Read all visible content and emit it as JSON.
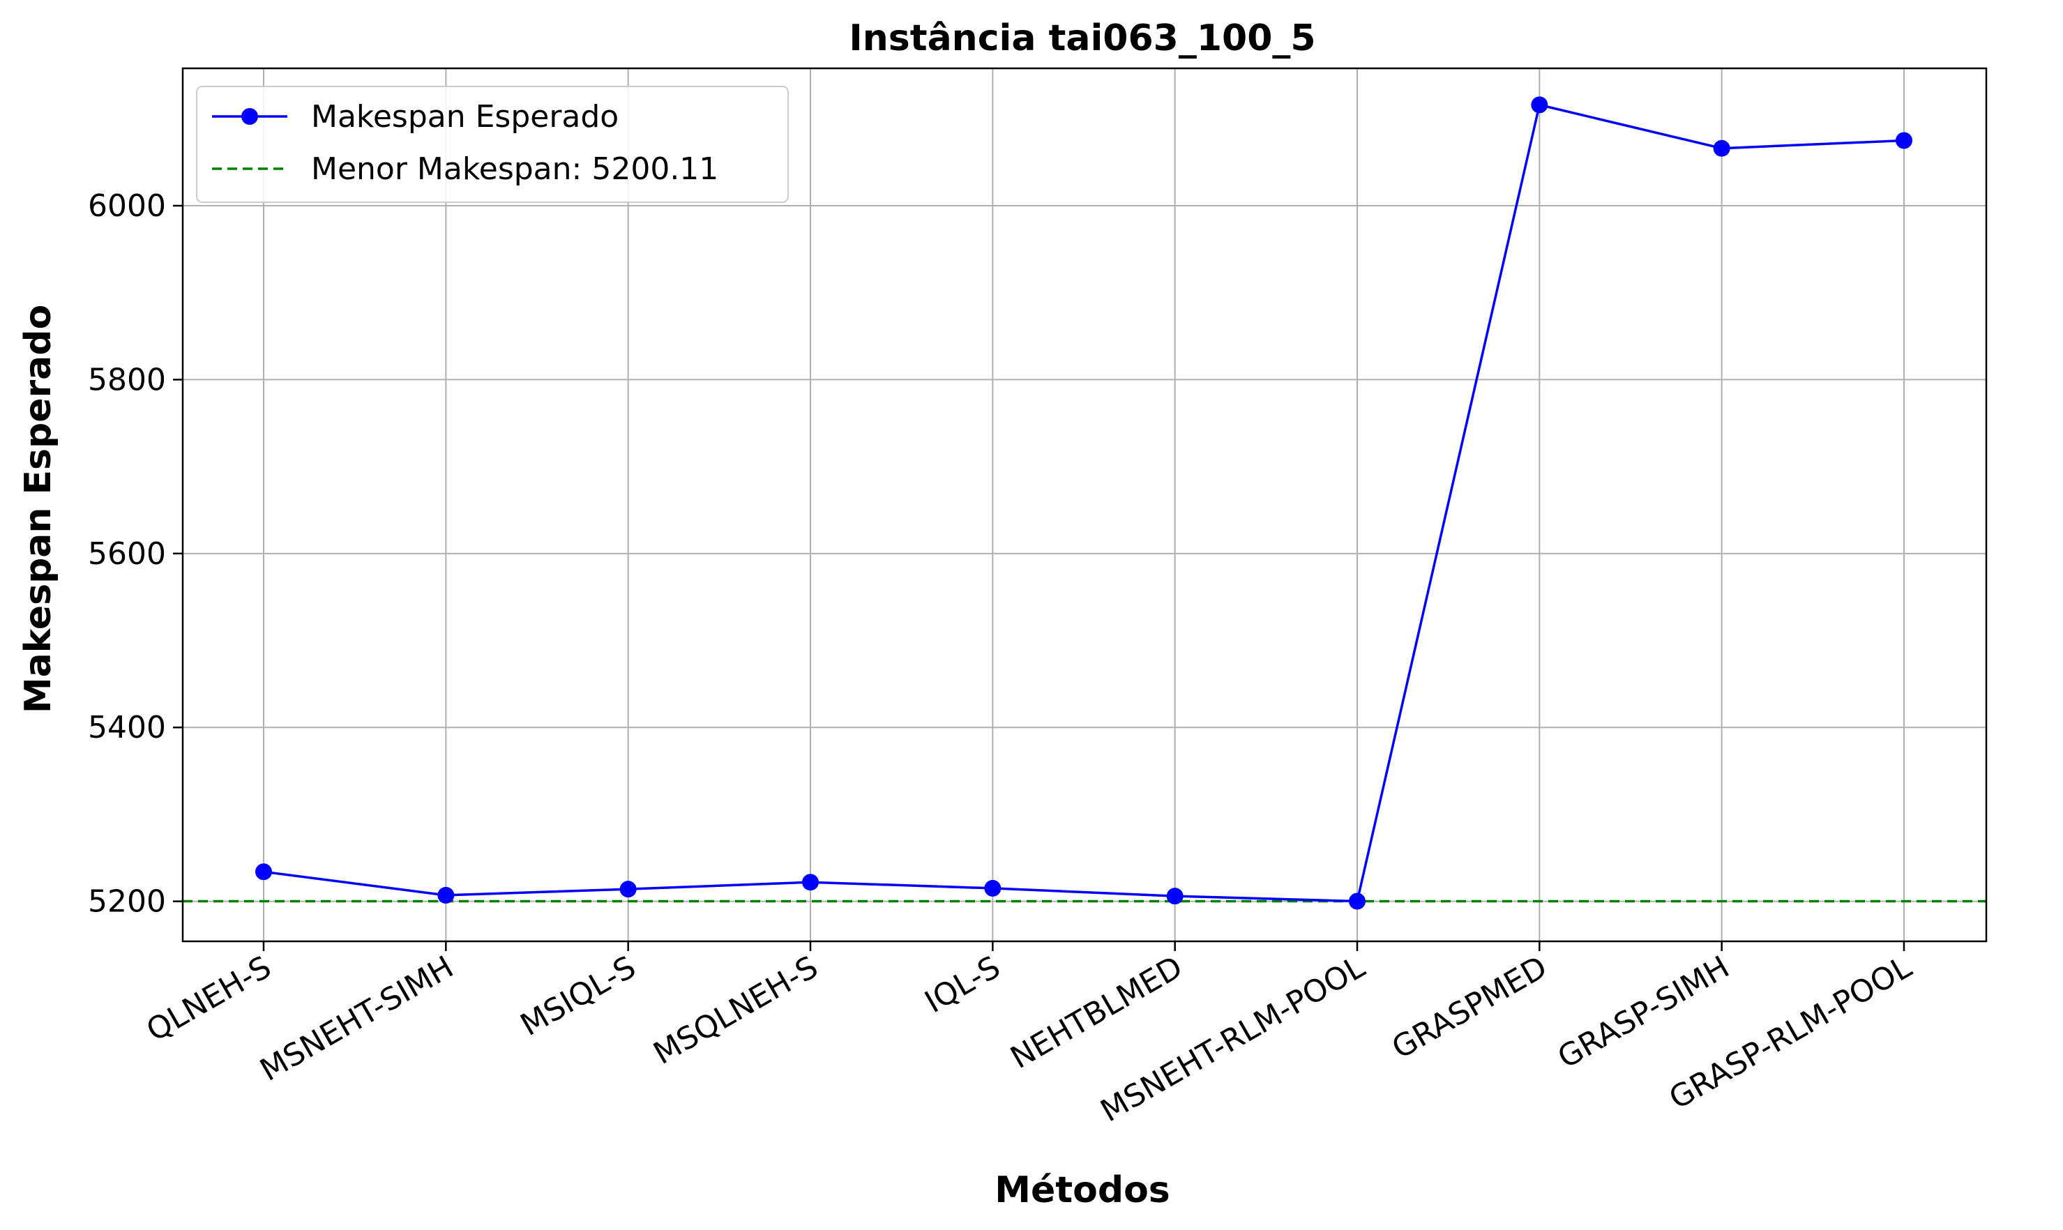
{
  "chart_data": {
    "type": "line",
    "title": "Instância tai063_100_5",
    "xlabel": "Métodos",
    "ylabel": "Makespan Esperado",
    "categories": [
      "QLNEH-S",
      "MSNEHT-SIMH",
      "MSIQL-S",
      "MSQLNEH-S",
      "IQL-S",
      "NEHTBLMED",
      "MSNEHT-RLM-POOL",
      "GRASPMED",
      "GRASP-SIMH",
      "GRASP-RLM-POOL"
    ],
    "series": [
      {
        "name": "Makespan Esperado",
        "color": "#0000ff",
        "marker": "circle",
        "values": [
          5234,
          5207,
          5214,
          5222,
          5215,
          5206,
          5200.11,
          6116,
          6066,
          6075
        ]
      }
    ],
    "reference_line": {
      "label": "Menor Makespan: 5200.11",
      "value": 5200.11,
      "color": "#008000",
      "style": "dashed"
    },
    "ylim": [
      5154,
      6158
    ],
    "yticks": [
      5200,
      5400,
      5600,
      5800,
      6000
    ],
    "grid": true,
    "legend_position": "top-left"
  }
}
